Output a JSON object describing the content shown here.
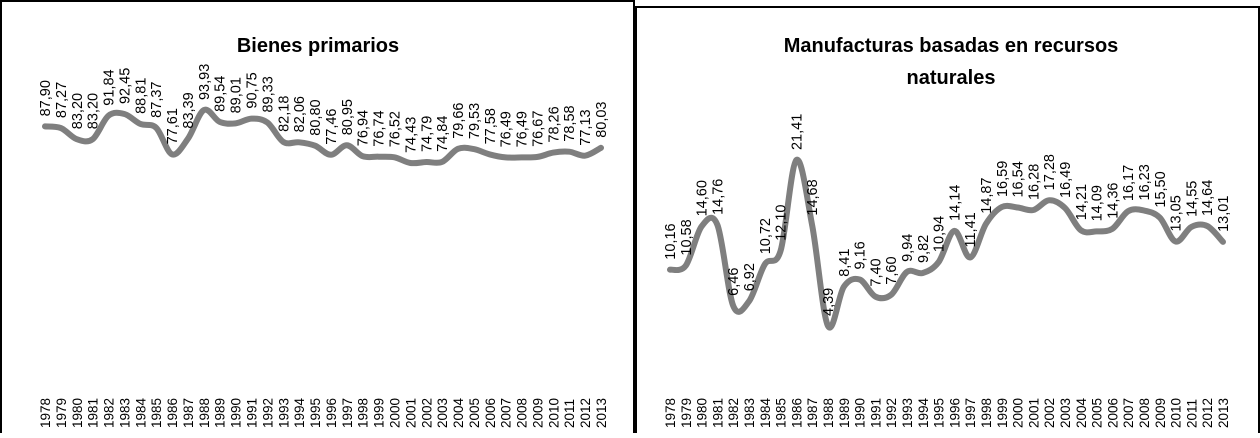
{
  "colors": {
    "line": "#7f7f7f",
    "frame": "#000000",
    "background": "#ffffff"
  },
  "chart_data": [
    {
      "type": "line",
      "title": "Bienes primarios",
      "categories": [
        "1978",
        "1979",
        "1980",
        "1981",
        "1982",
        "1983",
        "1984",
        "1985",
        "1986",
        "1987",
        "1988",
        "1989",
        "1990",
        "1991",
        "1992",
        "1993",
        "1994",
        "1995",
        "1996",
        "1997",
        "1998",
        "1999",
        "2000",
        "2001",
        "2002",
        "2003",
        "2004",
        "2005",
        "2006",
        "2007",
        "2008",
        "2009",
        "2010",
        "2011",
        "2012",
        "2013"
      ],
      "labels": [
        "87,90",
        "87,27",
        "83,20",
        "83,20",
        "91,84",
        "92,45",
        "88,81",
        "87,37",
        "77,61",
        "83,39",
        "93,93",
        "89,54",
        "89,01",
        "90,75",
        "89,33",
        "82,18",
        "82,06",
        "80,80",
        "77,46",
        "80,95",
        "76,94",
        "76,74",
        "76,52",
        "74,43",
        "74,79",
        "74,84",
        "79,66",
        "79,53",
        "77,58",
        "76,49",
        "76,49",
        "76,67",
        "78,26",
        "78,58",
        "77,13",
        "80,03"
      ],
      "values": [
        87.9,
        87.27,
        83.2,
        83.2,
        91.84,
        92.45,
        88.81,
        87.37,
        77.61,
        83.39,
        93.93,
        89.54,
        89.01,
        90.75,
        89.33,
        82.18,
        82.06,
        80.8,
        77.46,
        80.95,
        76.94,
        76.74,
        76.52,
        74.43,
        74.79,
        74.84,
        79.66,
        79.53,
        77.58,
        76.49,
        76.49,
        76.67,
        78.26,
        78.58,
        77.13,
        80.03
      ],
      "grid": false,
      "legend": "none"
    },
    {
      "type": "line",
      "title": "Manufacturas basadas en recursos naturales",
      "title_lines": [
        "Manufacturas basadas en recursos",
        "naturales"
      ],
      "categories": [
        "1978",
        "1979",
        "1980",
        "1981",
        "1982",
        "1983",
        "1984",
        "1985",
        "1986",
        "1987",
        "1988",
        "1989",
        "1990",
        "1991",
        "1992",
        "1993",
        "1994",
        "1995",
        "1996",
        "1997",
        "1998",
        "1999",
        "2000",
        "2001",
        "2002",
        "2003",
        "2004",
        "2005",
        "2006",
        "2007",
        "2008",
        "2009",
        "2010",
        "2011",
        "2012",
        "2013"
      ],
      "labels": [
        "10,16",
        "10,58",
        "14,60",
        "14,76",
        "6,46",
        "6,92",
        "10,72",
        "12,10",
        "21,41",
        "14,68",
        "4,39",
        "8,41",
        "9,16",
        "7,40",
        "7,60",
        "9,94",
        "9,82",
        "10,94",
        "14,14",
        "11,41",
        "14,87",
        "16,59",
        "16,54",
        "16,28",
        "17,28",
        "16,49",
        "14,21",
        "14,09",
        "14,36",
        "16,17",
        "16,23",
        "15,50",
        "13,05",
        "14,55",
        "14,64",
        "13,01"
      ],
      "values": [
        10.16,
        10.58,
        14.6,
        14.76,
        6.46,
        6.92,
        10.72,
        12.1,
        21.41,
        14.68,
        4.39,
        8.41,
        9.16,
        7.4,
        7.6,
        9.94,
        9.82,
        10.94,
        14.14,
        11.41,
        14.87,
        16.59,
        16.54,
        16.28,
        17.28,
        16.49,
        14.21,
        14.09,
        14.36,
        16.17,
        16.23,
        15.5,
        13.05,
        14.55,
        14.64,
        13.01
      ],
      "grid": false,
      "legend": "none"
    }
  ]
}
